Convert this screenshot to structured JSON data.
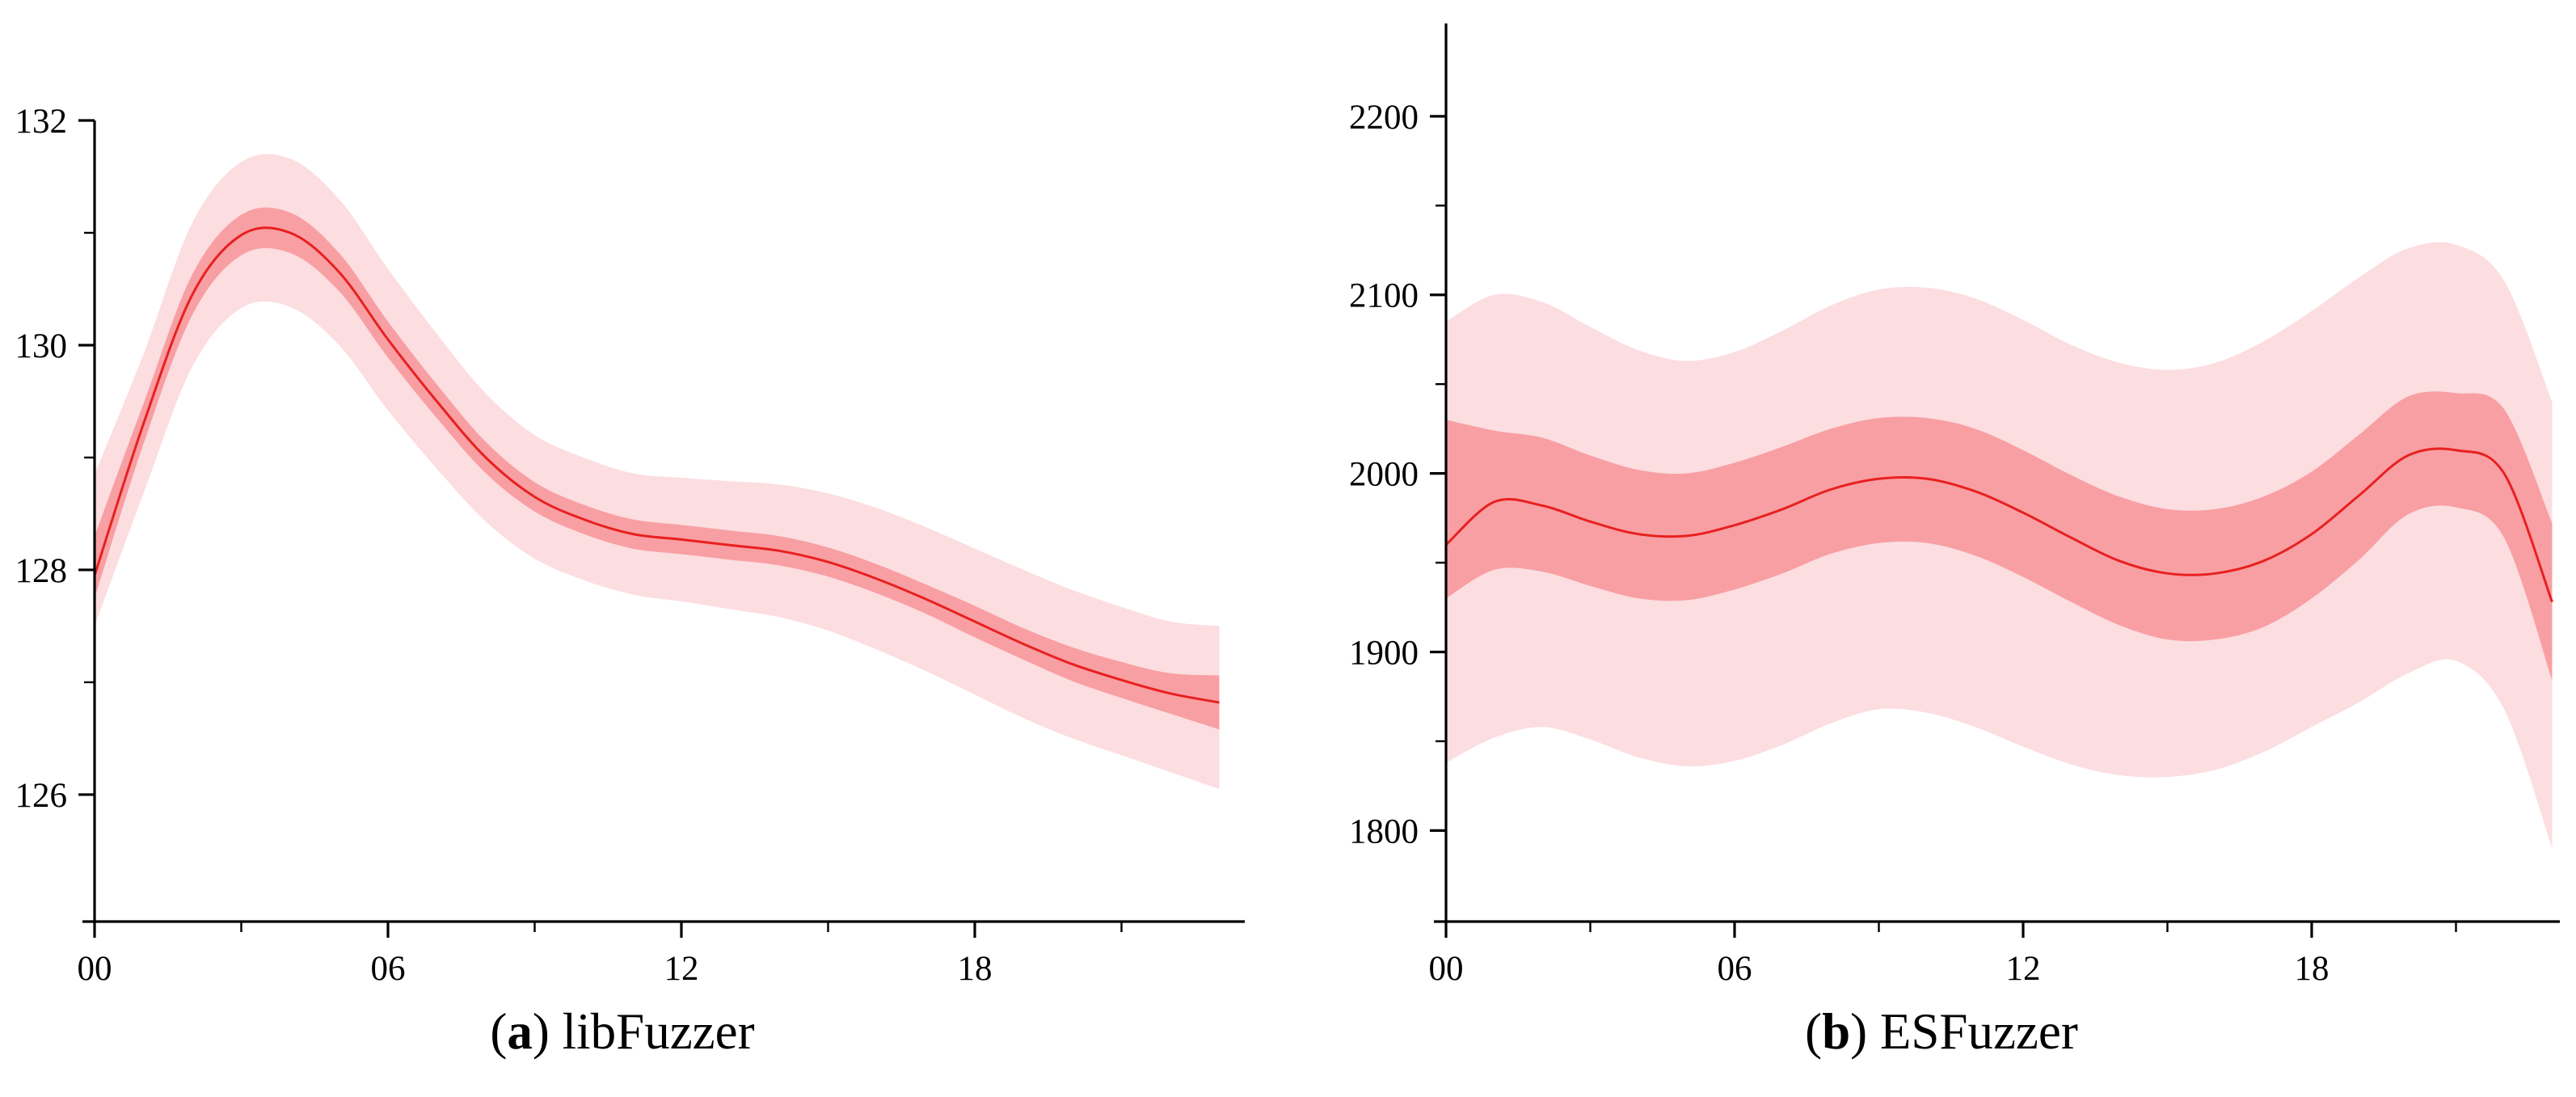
{
  "figure": {
    "background": "#ffffff",
    "captions": {
      "a": {
        "open": "(",
        "letter": "a",
        "close": ") ",
        "label": "libFuzzer"
      },
      "b": {
        "open": "(",
        "letter": "b",
        "close": ") ",
        "label": "ESFuzzer"
      }
    }
  },
  "chart_data": [
    {
      "type": "line",
      "panel": "a",
      "title": "(a) libFuzzer",
      "x_unit": "hour (00-23)",
      "x": [
        0,
        1,
        2,
        3,
        4,
        5,
        6,
        7,
        8,
        9,
        10,
        11,
        12,
        13,
        14,
        15,
        16,
        17,
        18,
        19,
        20,
        21,
        22,
        23
      ],
      "series": [
        {
          "name": "mean",
          "values": [
            127.95,
            129.3,
            130.45,
            130.98,
            131.0,
            130.65,
            130.05,
            129.5,
            129.0,
            128.65,
            128.45,
            128.32,
            128.27,
            128.22,
            128.17,
            128.07,
            127.92,
            127.74,
            127.54,
            127.34,
            127.16,
            127.02,
            126.9,
            126.82
          ]
        },
        {
          "name": "inner_band_high",
          "values": [
            128.3,
            129.48,
            130.63,
            131.16,
            131.18,
            130.82,
            130.21,
            129.65,
            129.14,
            128.78,
            128.58,
            128.45,
            128.4,
            128.35,
            128.3,
            128.2,
            128.05,
            127.87,
            127.68,
            127.48,
            127.31,
            127.18,
            127.08,
            127.06
          ]
        },
        {
          "name": "inner_band_low",
          "values": [
            127.75,
            129.12,
            130.27,
            130.8,
            130.82,
            130.48,
            129.89,
            129.35,
            128.86,
            128.52,
            128.32,
            128.19,
            128.14,
            128.09,
            128.04,
            127.94,
            127.79,
            127.61,
            127.4,
            127.2,
            127.01,
            126.86,
            126.72,
            126.58
          ]
        },
        {
          "name": "outer_band_high",
          "values": [
            128.85,
            129.92,
            131.09,
            131.63,
            131.66,
            131.3,
            130.68,
            130.1,
            129.57,
            129.2,
            129.0,
            128.86,
            128.82,
            128.79,
            128.76,
            128.68,
            128.55,
            128.38,
            128.19,
            128.0,
            127.82,
            127.67,
            127.54,
            127.5
          ]
        },
        {
          "name": "outer_band_low",
          "values": [
            127.5,
            128.68,
            129.81,
            130.33,
            130.34,
            130.0,
            129.42,
            128.9,
            128.43,
            128.1,
            127.91,
            127.78,
            127.72,
            127.65,
            127.58,
            127.46,
            127.29,
            127.1,
            126.89,
            126.68,
            126.5,
            126.35,
            126.2,
            126.05
          ]
        }
      ],
      "xticks": {
        "major": [
          0,
          6,
          12,
          18
        ],
        "major_labels": [
          "00",
          "06",
          "12",
          "18"
        ],
        "minor": [
          3,
          9,
          15,
          21
        ]
      },
      "yticks": {
        "major": [
          126,
          128,
          130,
          132
        ],
        "major_labels": [
          "126",
          "128",
          "130",
          "132"
        ],
        "minor": [
          127,
          129,
          131
        ]
      },
      "xlim": [
        0,
        23.5
      ],
      "ylim": [
        124.87,
        132
      ],
      "grid": false,
      "legend": null,
      "colors": {
        "line": "#e82020",
        "inner_band": "#f89fa3",
        "outer_band": "#fcdde0",
        "axis": "#000000"
      }
    },
    {
      "type": "line",
      "panel": "b",
      "title": "(b) ESFuzzer",
      "x_unit": "hour (00-23)",
      "x": [
        0,
        1,
        2,
        3,
        4,
        5,
        6,
        7,
        8,
        9,
        10,
        11,
        12,
        13,
        14,
        15,
        16,
        17,
        18,
        19,
        20,
        21,
        22,
        23
      ],
      "series": [
        {
          "name": "mean",
          "values": [
            1960,
            1984,
            1982,
            1973,
            1966,
            1965,
            1971,
            1980,
            1991,
            1997,
            1997,
            1990,
            1978,
            1964,
            1951,
            1944,
            1944,
            1951,
            1966,
            1988,
            2010,
            2013,
            2000,
            1928
          ]
        },
        {
          "name": "inner_band_high",
          "values": [
            2030,
            2024,
            2020,
            2010,
            2002,
            2000,
            2006,
            2015,
            2025,
            2031,
            2031,
            2025,
            2013,
            1999,
            1987,
            1980,
            1980,
            1987,
            2001,
            2022,
            2043,
            2045,
            2036,
            1972
          ]
        },
        {
          "name": "inner_band_low",
          "values": [
            1930,
            1946,
            1945,
            1937,
            1930,
            1929,
            1935,
            1944,
            1955,
            1961,
            1961,
            1954,
            1942,
            1928,
            1915,
            1907,
            1907,
            1914,
            1930,
            1952,
            1977,
            1981,
            1964,
            1884
          ]
        },
        {
          "name": "outer_band_high",
          "values": [
            2085,
            2100,
            2096,
            2082,
            2069,
            2063,
            2068,
            2080,
            2094,
            2103,
            2104,
            2098,
            2086,
            2072,
            2062,
            2058,
            2062,
            2074,
            2091,
            2110,
            2126,
            2128,
            2108,
            2040
          ]
        },
        {
          "name": "outer_band_low",
          "values": [
            1838,
            1852,
            1858,
            1851,
            1841,
            1836,
            1839,
            1848,
            1860,
            1868,
            1866,
            1858,
            1847,
            1837,
            1831,
            1830,
            1834,
            1844,
            1858,
            1872,
            1888,
            1895,
            1868,
            1790
          ]
        }
      ],
      "xticks": {
        "major": [
          0,
          6,
          12,
          18
        ],
        "major_labels": [
          "00",
          "06",
          "12",
          "18"
        ],
        "minor": [
          3,
          9,
          15,
          21
        ]
      },
      "yticks": {
        "major": [
          1800,
          1900,
          2000,
          2100,
          2200
        ],
        "major_labels": [
          "1800",
          "1900",
          "2000",
          "2100",
          "2200"
        ],
        "minor": [
          1850,
          1950,
          2050,
          2150
        ]
      },
      "xlim": [
        0,
        23.2
      ],
      "ylim": [
        1749,
        2252
      ],
      "grid": false,
      "legend": null,
      "colors": {
        "line": "#e82020",
        "inner_band": "#f89fa3",
        "outer_band": "#fcdde0",
        "axis": "#000000"
      }
    }
  ]
}
